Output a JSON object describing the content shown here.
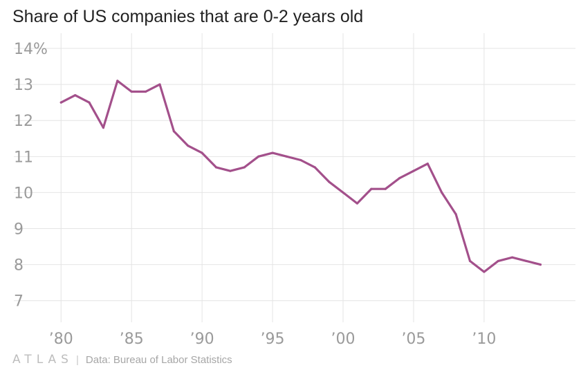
{
  "chart_data": {
    "type": "line",
    "title": "Share of US companies that are 0-2 years old",
    "xlabel": "",
    "ylabel": "",
    "x": [
      1980,
      1981,
      1982,
      1983,
      1984,
      1985,
      1986,
      1987,
      1988,
      1989,
      1990,
      1991,
      1992,
      1993,
      1994,
      1995,
      1996,
      1997,
      1998,
      1999,
      2000,
      2001,
      2002,
      2003,
      2004,
      2005,
      2006,
      2007,
      2008,
      2009,
      2010,
      2011,
      2012,
      2013,
      2014
    ],
    "series": [
      {
        "name": "Share of companies 0-2 years old",
        "color": "#a3508b",
        "values": [
          12.5,
          12.7,
          12.5,
          11.8,
          13.1,
          12.8,
          12.8,
          13.0,
          11.7,
          11.3,
          11.1,
          10.7,
          10.6,
          10.7,
          11.0,
          11.1,
          11.0,
          10.9,
          10.7,
          10.3,
          10.0,
          9.7,
          10.1,
          10.1,
          10.4,
          10.6,
          10.8,
          10.0,
          9.4,
          8.1,
          7.8,
          8.1,
          8.2,
          8.1,
          8.0
        ]
      }
    ],
    "xlim": [
      1979.3,
      2015.5
    ],
    "ylim": [
      6.4,
      14.0
    ],
    "xticks": [
      1980,
      1985,
      1990,
      1995,
      2000,
      2005,
      2010
    ],
    "xtick_labels": [
      "’80",
      "’85",
      "’90",
      "’95",
      "’00",
      "’05",
      "’10"
    ],
    "yticks": [
      7,
      8,
      9,
      10,
      11,
      12,
      13,
      14
    ],
    "ytick_labels": [
      "7",
      "8",
      "9",
      "10",
      "11",
      "12",
      "13",
      "14%"
    ],
    "grid": true
  },
  "footer": {
    "brand": "ATLAS",
    "separator": "|",
    "source": "Data:  Bureau of Labor Statistics"
  }
}
